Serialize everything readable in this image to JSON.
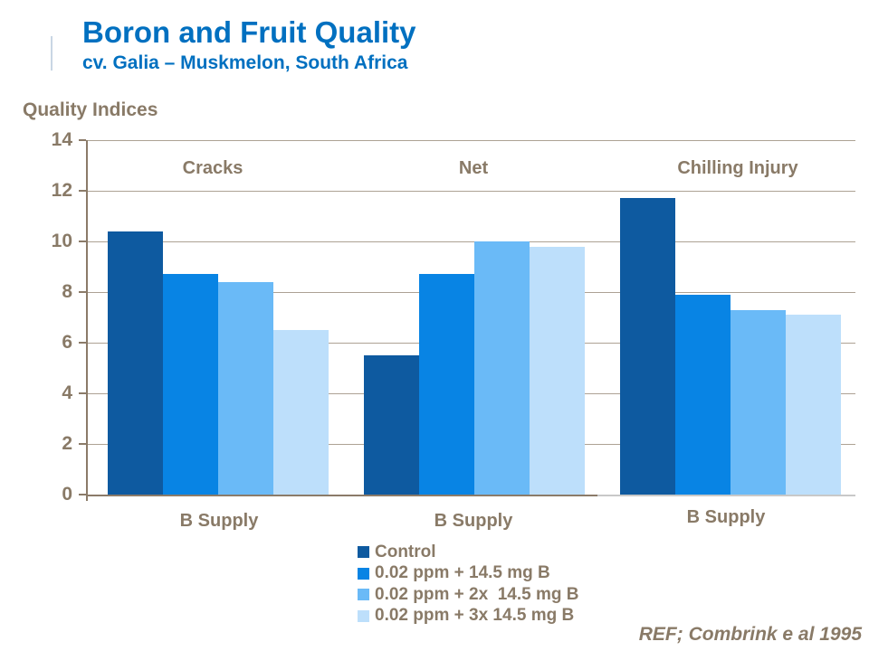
{
  "header": {
    "title": "Boron and Fruit Quality",
    "subtitle": "cv. Galia – Muskmelon, South Africa"
  },
  "footer": {
    "reference": "REF; Combrink e al 1995"
  },
  "colors": {
    "title_blue": "#0070C0",
    "text_brown": "#897a67",
    "gridline": "#ada294",
    "axis_brown": "#8b7b69",
    "axis_gray": "#c8c8c8"
  },
  "chart_data": {
    "type": "bar",
    "ylabel": "Quality Indices",
    "ylim": [
      0,
      14
    ],
    "yticks": [
      14,
      12,
      10,
      8,
      6,
      4,
      2,
      0
    ],
    "grid": true,
    "legend_position": "bottom",
    "categories": [
      "Cracks",
      "Net",
      "Chilling Injury"
    ],
    "x_labels": [
      "B Supply",
      "B Supply",
      "B Supply"
    ],
    "series": [
      {
        "name": "Control",
        "color": "#0E5AA0",
        "values": [
          10.4,
          5.5,
          11.7
        ]
      },
      {
        "name": "0.02 ppm + 14.5 mg B",
        "color": "#0884E4",
        "values": [
          8.7,
          8.7,
          7.9
        ]
      },
      {
        "name": "0.02 ppm + 2x  14.5 mg B",
        "color": "#6ABAF7",
        "values": [
          8.4,
          10.0,
          7.3
        ]
      },
      {
        "name": "0.02 ppm + 3x 14.5 mg B",
        "color": "#BDDFFB",
        "values": [
          6.5,
          9.8,
          7.1
        ]
      }
    ]
  }
}
